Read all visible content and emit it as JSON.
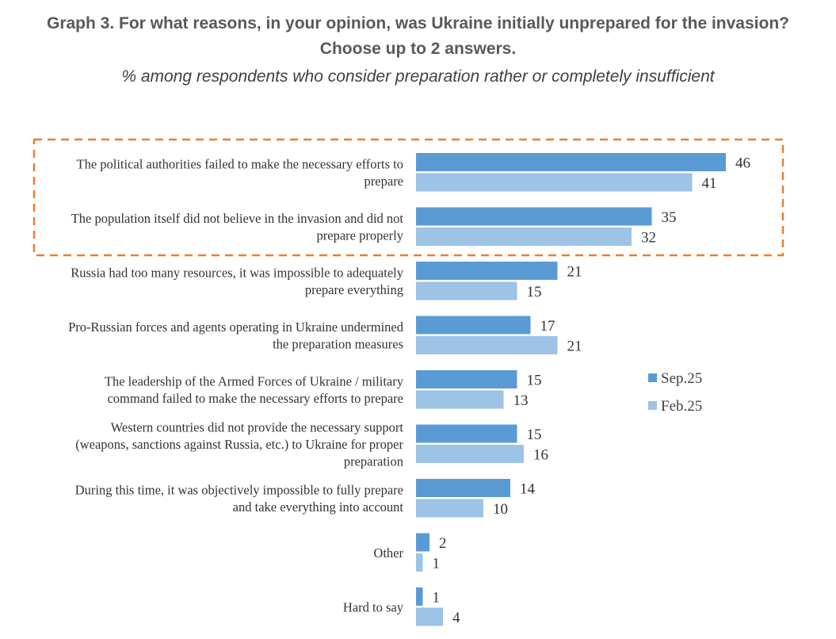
{
  "header": {
    "title_line1": "Graph 3. For what reasons, in your opinion, was Ukraine initially unprepared for the invasion?",
    "title_line2": "Choose up to 2 answers.",
    "subtitle": "% among respondents who consider preparation rather or completely insufficient"
  },
  "chart_data": {
    "type": "bar",
    "orientation": "horizontal",
    "categories": [
      [
        "The political authorities failed to make the necessary efforts to",
        "prepare"
      ],
      [
        "The population itself did not believe in the invasion and did not",
        "prepare properly"
      ],
      [
        "Russia had too many resources, it was impossible to adequately",
        "prepare everything"
      ],
      [
        "Pro-Russian forces and agents operating in Ukraine undermined",
        "the preparation measures"
      ],
      [
        "The leadership of the Armed Forces of Ukraine / military",
        "command failed to make the necessary efforts to prepare"
      ],
      [
        "Western countries did not provide the necessary support",
        "(weapons, sanctions against Russia, etc.) to Ukraine for proper",
        "preparation"
      ],
      [
        "During this time, it was objectively impossible to fully prepare",
        "and take everything into account"
      ],
      [
        "Other"
      ],
      [
        "Hard to say"
      ]
    ],
    "series": [
      {
        "name": "Sep.25",
        "color": "#5b9bd5",
        "values": [
          46,
          35,
          21,
          17,
          15,
          15,
          14,
          2,
          1
        ]
      },
      {
        "name": "Feb.25",
        "color": "#9dc3e6",
        "values": [
          41,
          32,
          15,
          21,
          13,
          16,
          10,
          1,
          4
        ]
      }
    ],
    "highlight": {
      "categories": [
        0,
        1
      ],
      "color": "#ed7d31",
      "style": "dashed"
    },
    "legend": "right",
    "grid": false
  }
}
